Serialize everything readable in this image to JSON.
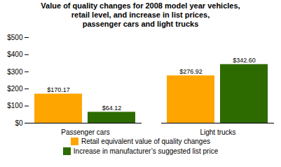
{
  "chart_data": {
    "type": "bar",
    "title": "Value of quality changes for 2008 model year vehicles,\nretail level, and increase in list prices,\npassenger cars and light trucks",
    "categories": [
      "Passenger cars",
      "Light trucks"
    ],
    "series": [
      {
        "name": "Retail equivalent value of quality changes",
        "color": "#FFA500",
        "values": [
          170.17,
          276.92
        ],
        "value_labels": [
          "$170.17",
          "$276.92"
        ]
      },
      {
        "name": "Increase in manufacturer’s suggested list price",
        "color": "#2D6A00",
        "values": [
          64.12,
          342.6
        ],
        "value_labels": [
          "$64.12",
          "$342.60"
        ]
      }
    ],
    "ylim": [
      0,
      500
    ],
    "yticks": [
      {
        "value": 0,
        "label": "$0"
      },
      {
        "value": 100,
        "label": "$100"
      },
      {
        "value": 200,
        "label": "$200"
      },
      {
        "value": 300,
        "label": "$300"
      },
      {
        "value": 400,
        "label": "$400"
      },
      {
        "value": 500,
        "label": "$500"
      }
    ],
    "data_labels": true,
    "grid": false,
    "legend": "bottom"
  }
}
